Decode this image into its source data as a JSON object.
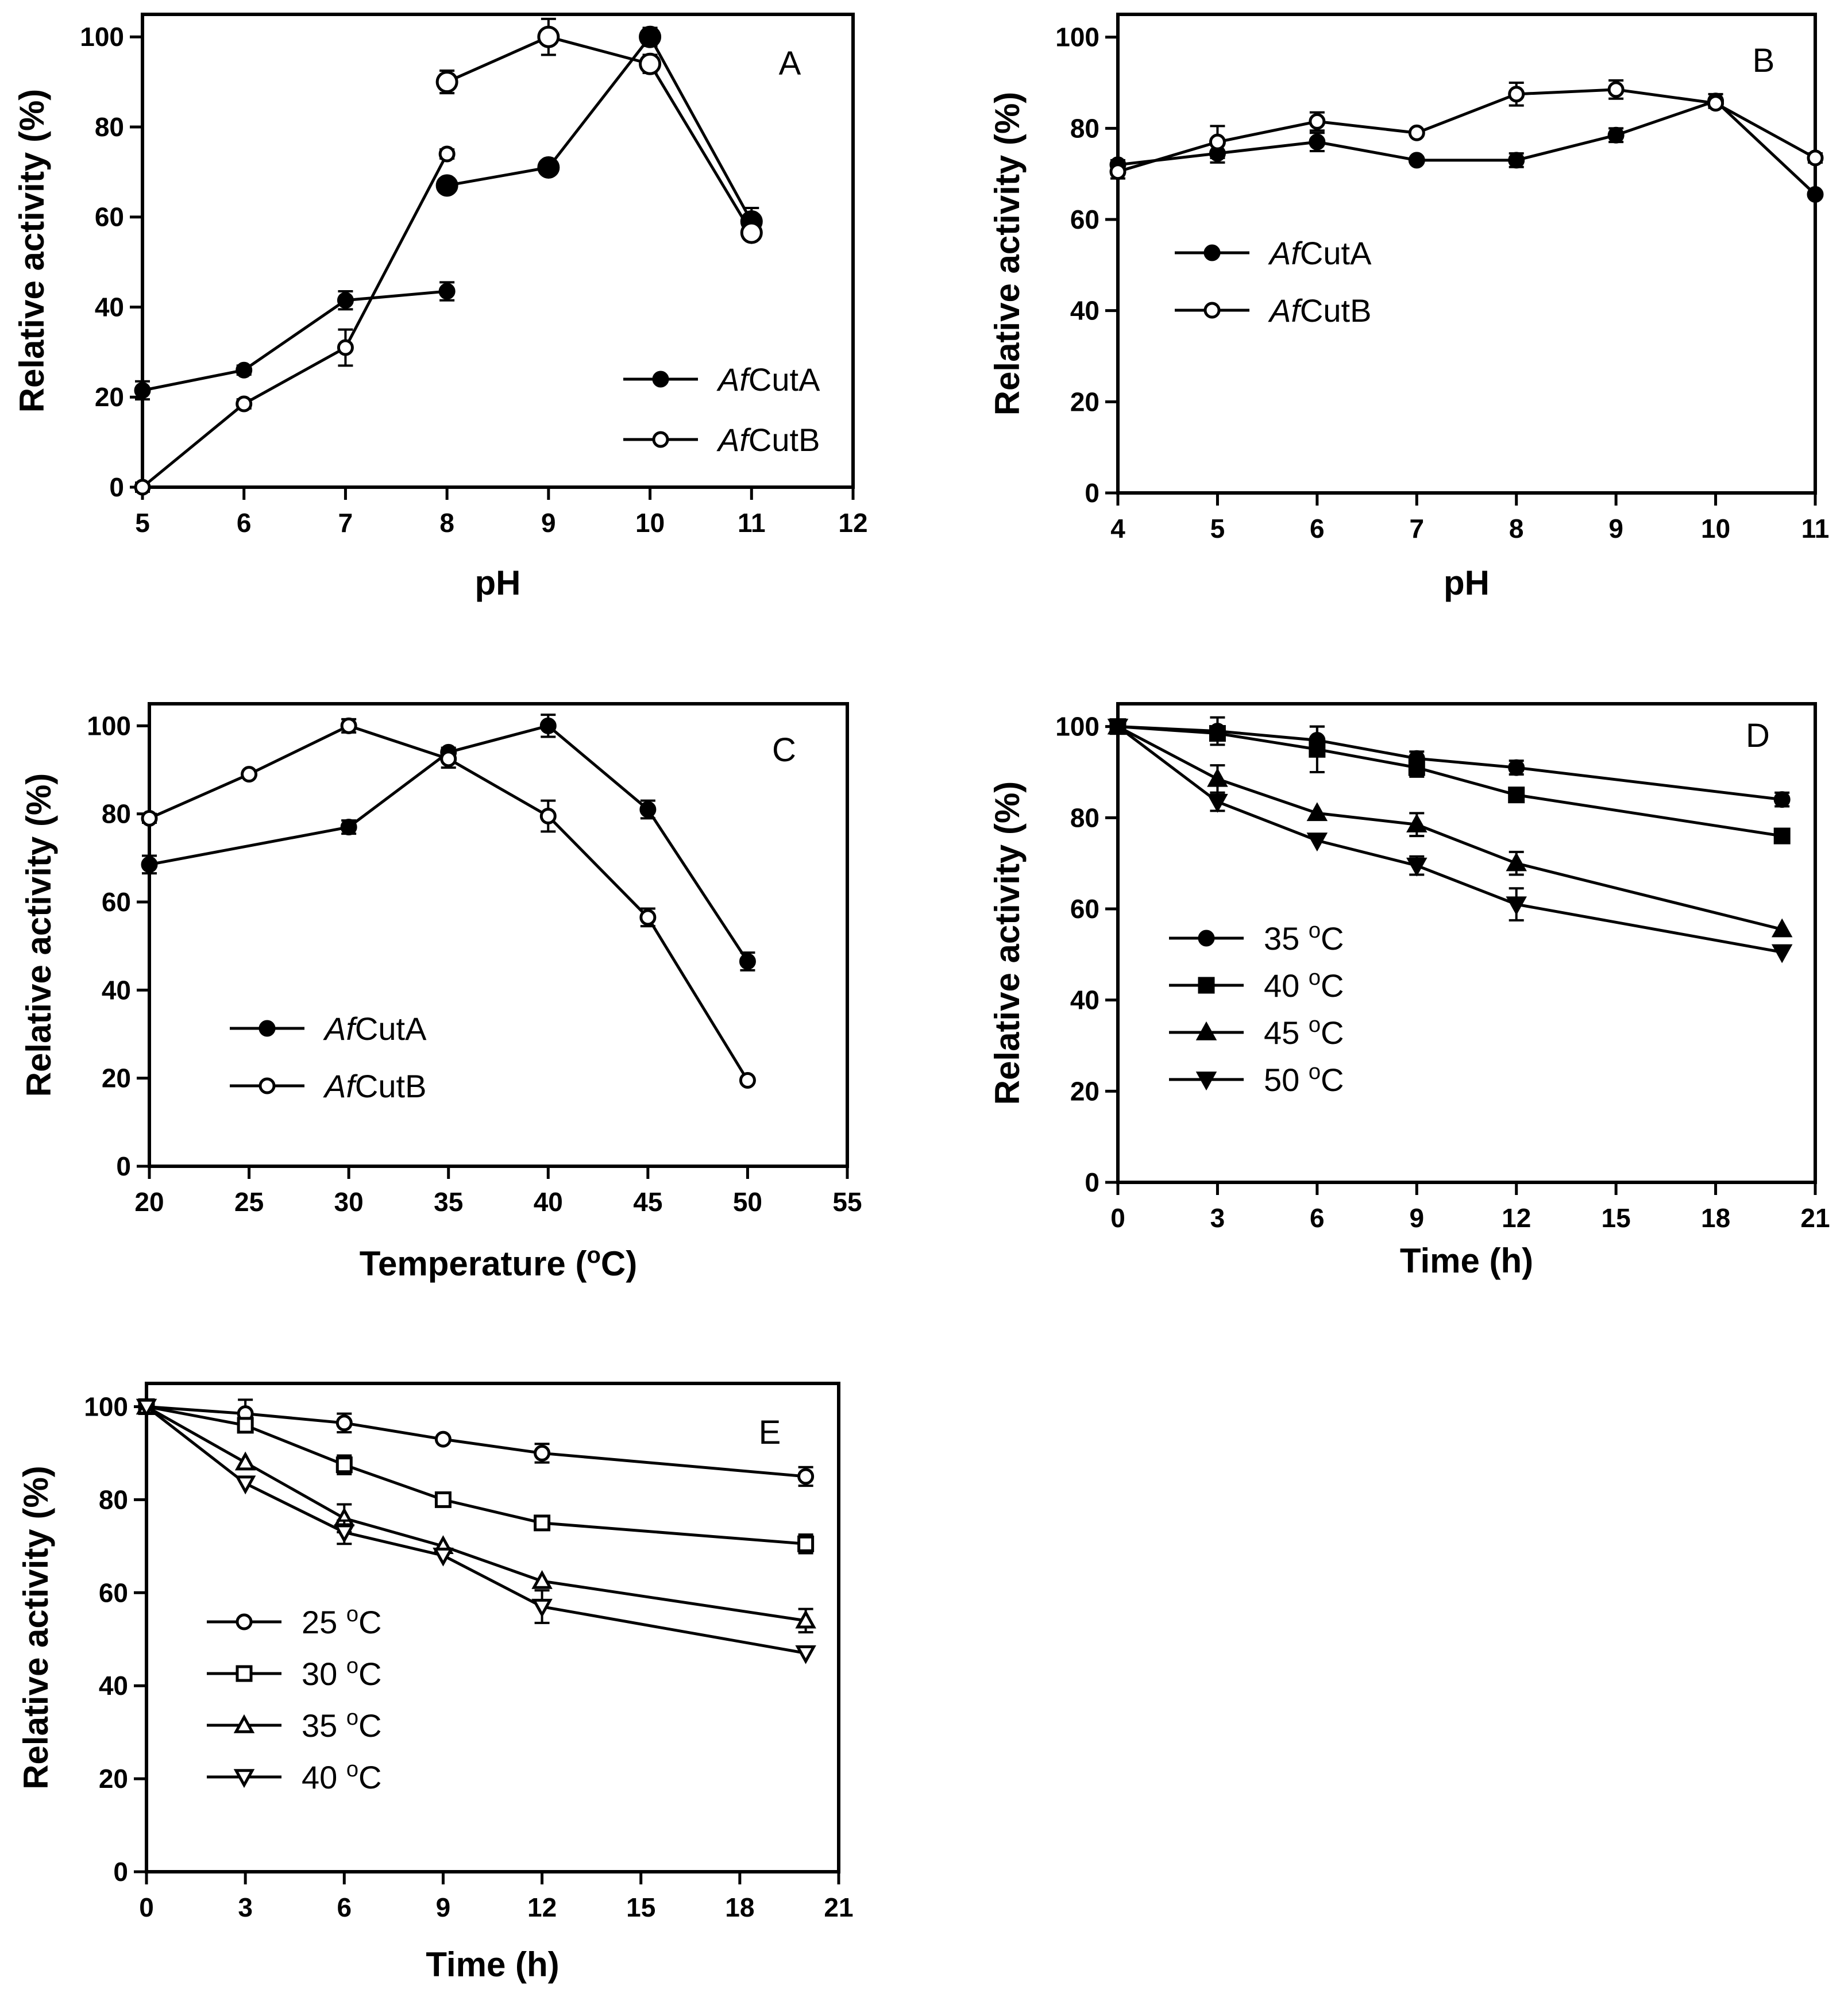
{
  "figure": {
    "colors": {
      "ink": "#000000",
      "paper": "#ffffff"
    }
  },
  "chart_data": [
    {
      "panel": "A",
      "type": "line",
      "xlabel": "pH",
      "ylabel": "Relative activity (%)",
      "xlim": [
        5,
        12
      ],
      "ylim": [
        0,
        105
      ],
      "xticks": [
        5,
        6,
        7,
        8,
        9,
        10,
        11,
        12
      ],
      "yticks": [
        0,
        20,
        40,
        60,
        80,
        100
      ],
      "legend_position": "bottom-right",
      "series": [
        {
          "name": "AfCutA",
          "name_italic": "Af",
          "name_rest": "CutA",
          "marker": "circle-filled",
          "points": [
            [
              5,
              21.5
            ],
            [
              6,
              26
            ],
            [
              7,
              41.5
            ],
            [
              8,
              43.5
            ]
          ],
          "errors": [
            2,
            1,
            2,
            2
          ]
        },
        {
          "name": "AfCutA",
          "name_italic": "Af",
          "name_rest": "CutA",
          "marker": "circle-filled-large",
          "legend": false,
          "points": [
            [
              8,
              67
            ],
            [
              9,
              71
            ],
            [
              10,
              100
            ],
            [
              11,
              59
            ]
          ],
          "errors": [
            1,
            1,
            2,
            3
          ]
        },
        {
          "name": "AfCutB",
          "name_italic": "Af",
          "name_rest": "CutB",
          "marker": "circle-open",
          "points": [
            [
              5,
              0
            ],
            [
              6,
              18.5
            ],
            [
              7,
              31
            ],
            [
              8,
              74
            ]
          ],
          "errors": [
            1,
            1,
            4,
            1
          ]
        },
        {
          "name": "AfCutB",
          "name_italic": "Af",
          "name_rest": "CutB",
          "marker": "circle-open-large",
          "legend": false,
          "points": [
            [
              8,
              90
            ],
            [
              9,
              100
            ],
            [
              10,
              94
            ],
            [
              11,
              56.5
            ]
          ],
          "errors": [
            2.5,
            4,
            2,
            1.5
          ]
        }
      ]
    },
    {
      "panel": "B",
      "type": "line",
      "xlabel": "pH",
      "ylabel": "Relative activity (%)",
      "xlim": [
        4,
        11
      ],
      "ylim": [
        0,
        105
      ],
      "xticks": [
        4,
        5,
        6,
        7,
        8,
        9,
        10,
        11
      ],
      "yticks": [
        0,
        20,
        40,
        60,
        80,
        100
      ],
      "legend_position": "middle-left",
      "series": [
        {
          "name": "AfCutA",
          "name_italic": "Af",
          "name_rest": "CutA",
          "marker": "circle-filled",
          "points": [
            [
              4,
              72
            ],
            [
              5,
              74.5
            ],
            [
              6,
              77
            ],
            [
              7,
              73
            ],
            [
              8,
              73
            ],
            [
              9,
              78.5
            ],
            [
              10,
              86
            ],
            [
              11,
              65.5
            ]
          ],
          "errors": [
            1,
            2,
            2,
            0.5,
            1.5,
            1.5,
            1.5,
            0.5
          ]
        },
        {
          "name": "AfCutB",
          "name_italic": "Af",
          "name_rest": "CutB",
          "marker": "circle-open",
          "points": [
            [
              4,
              70.5
            ],
            [
              5,
              77
            ],
            [
              6,
              81.5
            ],
            [
              7,
              79
            ],
            [
              8,
              87.5
            ],
            [
              9,
              88.5
            ],
            [
              10,
              85.5
            ],
            [
              11,
              73.5
            ]
          ],
          "errors": [
            1.5,
            3.5,
            2,
            0.5,
            2.5,
            2,
            1,
            1
          ]
        }
      ]
    },
    {
      "panel": "C",
      "type": "line",
      "xlabel": "Temperature (oC)",
      "xlabel_main": "Temperature (",
      "xlabel_sup": "o",
      "xlabel_end": "C)",
      "ylabel": "Relative activity (%)",
      "xlim": [
        20,
        55
      ],
      "ylim": [
        0,
        105
      ],
      "xticks": [
        20,
        25,
        30,
        35,
        40,
        45,
        50,
        55
      ],
      "yticks": [
        0,
        20,
        40,
        60,
        80,
        100
      ],
      "legend_position": "bottom-left",
      "series": [
        {
          "name": "AfCutA",
          "name_italic": "Af",
          "name_rest": "CutA",
          "marker": "circle-filled",
          "points": [
            [
              20,
              68.5
            ],
            [
              30,
              77
            ],
            [
              35,
              94
            ],
            [
              40,
              100
            ],
            [
              45,
              81
            ],
            [
              50,
              46.5
            ]
          ],
          "errors": [
            2,
            1.5,
            1,
            2.5,
            2,
            2
          ]
        },
        {
          "name": "AfCutB",
          "name_italic": "Af",
          "name_rest": "CutB",
          "marker": "circle-open",
          "points": [
            [
              20,
              79
            ],
            [
              25,
              89
            ],
            [
              30,
              100
            ],
            [
              35,
              92.5
            ],
            [
              40,
              79.5
            ],
            [
              45,
              56.5
            ],
            [
              50,
              19.5
            ]
          ],
          "errors": [
            1,
            0.5,
            1.5,
            2,
            3.5,
            2,
            0.5
          ]
        }
      ]
    },
    {
      "panel": "D",
      "type": "line",
      "xlabel": "Time (h)",
      "ylabel": "Relative activity (%)",
      "xlim": [
        0,
        21
      ],
      "ylim": [
        0,
        105
      ],
      "xticks": [
        0,
        3,
        6,
        9,
        12,
        15,
        18,
        21
      ],
      "yticks": [
        0,
        20,
        40,
        60,
        80,
        100
      ],
      "legend_position": "middle-left",
      "series": [
        {
          "name": "35 oC",
          "name_main": "35 ",
          "name_sup": "o",
          "name_end": "C",
          "marker": "circle-filled",
          "points": [
            [
              0,
              100
            ],
            [
              3,
              99
            ],
            [
              6,
              97
            ],
            [
              9,
              93
            ],
            [
              12,
              91
            ],
            [
              20,
              84
            ]
          ],
          "errors": [
            0.5,
            3,
            3,
            1.5,
            1.5,
            1.5
          ]
        },
        {
          "name": "40 oC",
          "name_main": "40 ",
          "name_sup": "o",
          "name_end": "C",
          "marker": "square-filled",
          "points": [
            [
              0,
              100
            ],
            [
              3,
              98.5
            ],
            [
              6,
              95
            ],
            [
              9,
              91
            ],
            [
              12,
              85
            ],
            [
              20,
              76
            ]
          ],
          "errors": [
            0.5,
            1,
            5,
            2,
            0.5,
            0.5
          ]
        },
        {
          "name": "45 oC",
          "name_main": "45 ",
          "name_sup": "o",
          "name_end": "C",
          "marker": "triangle-up-filled",
          "points": [
            [
              0,
              100
            ],
            [
              3,
              88.5
            ],
            [
              6,
              81
            ],
            [
              9,
              78.5
            ],
            [
              12,
              70
            ],
            [
              20,
              55.5
            ]
          ],
          "errors": [
            0.5,
            3,
            0.5,
            2.5,
            2.5,
            0.5
          ]
        },
        {
          "name": "50 oC",
          "name_main": "50 ",
          "name_sup": "o",
          "name_end": "C",
          "marker": "triangle-down-filled",
          "points": [
            [
              0,
              100
            ],
            [
              3,
              83.5
            ],
            [
              6,
              75
            ],
            [
              9,
              69.5
            ],
            [
              12,
              61
            ],
            [
              20,
              50.5
            ]
          ],
          "errors": [
            0.5,
            2,
            0.5,
            2,
            3.5,
            0.5
          ]
        }
      ]
    },
    {
      "panel": "E",
      "type": "line",
      "xlabel": "Time (h)",
      "ylabel": "Relative activity (%)",
      "xlim": [
        0,
        21
      ],
      "ylim": [
        0,
        105
      ],
      "xticks": [
        0,
        3,
        6,
        9,
        12,
        15,
        18,
        21
      ],
      "yticks": [
        0,
        20,
        40,
        60,
        80,
        100
      ],
      "legend_position": "middle-left",
      "series": [
        {
          "name": "25 oC",
          "name_main": "25 ",
          "name_sup": "o",
          "name_end": "C",
          "marker": "circle-open",
          "points": [
            [
              0,
              100
            ],
            [
              3,
              98.5
            ],
            [
              6,
              96.5
            ],
            [
              9,
              93
            ],
            [
              12,
              90
            ],
            [
              20,
              85
            ]
          ],
          "errors": [
            0.5,
            3,
            2,
            0.5,
            2,
            2
          ]
        },
        {
          "name": "30 oC",
          "name_main": "30 ",
          "name_sup": "o",
          "name_end": "C",
          "marker": "square-open",
          "points": [
            [
              0,
              100
            ],
            [
              3,
              96
            ],
            [
              6,
              87.5
            ],
            [
              9,
              80
            ],
            [
              12,
              75
            ],
            [
              20,
              70.5
            ]
          ],
          "errors": [
            0.5,
            1,
            2,
            0.5,
            0.5,
            2
          ]
        },
        {
          "name": "35 oC",
          "name_main": "35 ",
          "name_sup": "o",
          "name_end": "C",
          "marker": "triangle-up-open",
          "points": [
            [
              0,
              100
            ],
            [
              3,
              88
            ],
            [
              6,
              76
            ],
            [
              9,
              70
            ],
            [
              12,
              62.5
            ],
            [
              20,
              54
            ]
          ],
          "errors": [
            0.5,
            0.5,
            3,
            0.5,
            0.5,
            2.5
          ]
        },
        {
          "name": "40 oC",
          "name_main": "40 ",
          "name_sup": "o",
          "name_end": "C",
          "marker": "triangle-down-open",
          "points": [
            [
              0,
              100
            ],
            [
              3,
              83.5
            ],
            [
              6,
              73
            ],
            [
              9,
              68
            ],
            [
              12,
              57
            ],
            [
              20,
              47
            ]
          ],
          "errors": [
            0.5,
            0.5,
            2.5,
            0.5,
            3.5,
            0.5
          ]
        }
      ]
    }
  ]
}
